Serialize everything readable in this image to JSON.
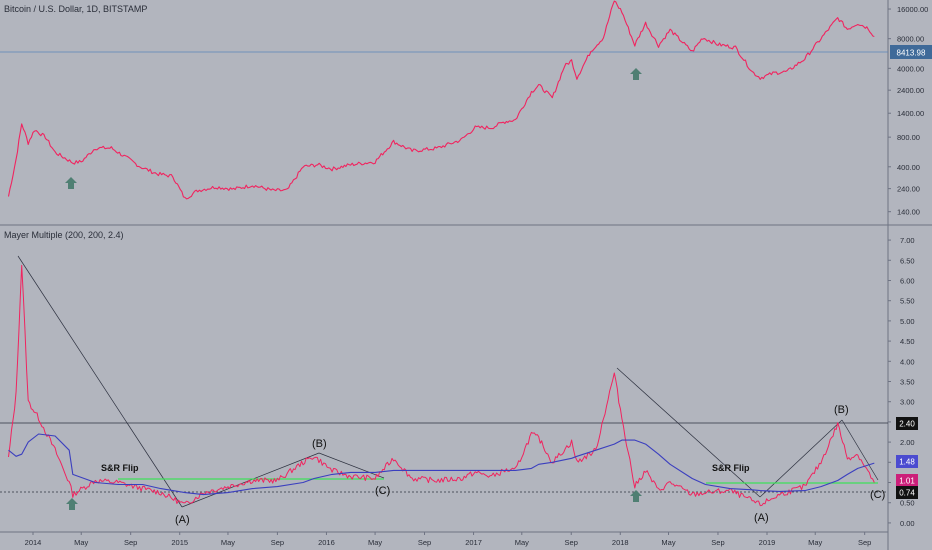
{
  "header": {
    "title": "Bitcoin / U.S. Dollar, 1D, BITSTAMP",
    "indicator": "Mayer Multiple (200, 200, 2.4)"
  },
  "colors": {
    "background": "#b2b5be",
    "price_line": "#f0245f",
    "ma_line": "#3b3fbf",
    "flip_line": "#3ee05a",
    "price_tag_bg": "#3f6a99",
    "mm_tag_bg": "#cc1f7a",
    "ma_tag_bg": "#4b4bd0",
    "arrow": "#4f7f73",
    "panel_border": "#6e7383"
  },
  "price_tag": "8413.98",
  "mm_tags": [
    "2.40",
    "1.48",
    "1.01",
    "0.74"
  ],
  "annotations": {
    "s_r_flip_label": "S&R Flip",
    "wave_a": "(A)",
    "wave_b": "(B)",
    "wave_c": "(C)"
  },
  "chart_data": [
    {
      "type": "line",
      "name": "price",
      "y_scale": "log",
      "ylim": [
        110,
        18000
      ],
      "y_ticks": [
        "16000.00",
        "8000.00",
        "4000.00",
        "2400.00",
        "1400.00",
        "800.00",
        "400.00",
        "240.00",
        "140.00"
      ],
      "x": [
        "2013-11-01",
        "2013-11-20",
        "2013-12-04",
        "2013-12-20",
        "2014-01-05",
        "2014-02-01",
        "2014-02-25",
        "2014-04-10",
        "2014-05-01",
        "2014-06-05",
        "2014-07-15",
        "2014-08-20",
        "2014-09-25",
        "2014-11-05",
        "2014-12-15",
        "2015-01-14",
        "2015-02-15",
        "2015-04-01",
        "2015-05-15",
        "2015-07-01",
        "2015-08-20",
        "2015-09-25",
        "2015-11-04",
        "2015-12-10",
        "2016-01-15",
        "2016-03-01",
        "2016-05-01",
        "2016-06-16",
        "2016-08-01",
        "2016-10-01",
        "2016-12-01",
        "2017-01-05",
        "2017-02-15",
        "2017-03-20",
        "2017-04-15",
        "2017-05-25",
        "2017-06-12",
        "2017-07-16",
        "2017-08-15",
        "2017-09-02",
        "2017-09-15",
        "2017-10-20",
        "2017-11-20",
        "2017-12-17",
        "2018-01-05",
        "2018-02-06",
        "2018-03-05",
        "2018-04-06",
        "2018-05-05",
        "2018-06-29",
        "2018-07-25",
        "2018-09-01",
        "2018-10-15",
        "2018-11-25",
        "2018-12-15",
        "2019-01-20",
        "2019-02-20",
        "2019-04-05",
        "2019-05-15",
        "2019-06-26",
        "2019-07-20",
        "2019-08-15",
        "2019-09-10",
        "2019-09-25"
      ],
      "y": [
        200,
        480,
        1100,
        700,
        950,
        800,
        560,
        440,
        450,
        620,
        620,
        500,
        400,
        340,
        320,
        190,
        230,
        250,
        237,
        260,
        230,
        230,
        400,
        420,
        380,
        420,
        450,
        720,
        580,
        615,
        750,
        1000,
        1000,
        1150,
        1200,
        2300,
        2700,
        2000,
        4200,
        4800,
        3200,
        6000,
        8200,
        19500,
        15000,
        6900,
        11500,
        6800,
        9800,
        5900,
        8200,
        7000,
        6500,
        3700,
        3200,
        3600,
        3700,
        5000,
        8000,
        13000,
        10000,
        11500,
        10200,
        8413.98
      ]
    },
    {
      "type": "line",
      "title": "Mayer Multiple (200, 200, 2.4)",
      "ylim": [
        -0.2,
        7.2
      ],
      "y_ticks": [
        "7.00",
        "6.50",
        "6.00",
        "5.50",
        "5.00",
        "4.50",
        "4.00",
        "3.50",
        "3.00",
        "2.50",
        "2.00",
        "1.50",
        "1.00",
        "0.50",
        "0.00"
      ],
      "x_ticks": [
        "2014",
        "May",
        "Sep",
        "2015",
        "May",
        "Sep",
        "2016",
        "May",
        "Sep",
        "2017",
        "May",
        "Sep",
        "2018",
        "May",
        "Sep",
        "2019",
        "May",
        "Sep"
      ],
      "x": [
        "2013-11-01",
        "2013-11-20",
        "2013-12-04",
        "2013-12-20",
        "2014-01-15",
        "2014-02-25",
        "2014-04-01",
        "2014-04-10",
        "2014-06-05",
        "2014-08-01",
        "2014-10-01",
        "2014-11-15",
        "2015-01-14",
        "2015-03-01",
        "2015-05-01",
        "2015-07-01",
        "2015-09-01",
        "2015-11-04",
        "2015-12-01",
        "2016-01-15",
        "2016-03-01",
        "2016-05-01",
        "2016-06-16",
        "2016-08-01",
        "2016-10-01",
        "2016-12-01",
        "2017-01-05",
        "2017-02-15",
        "2017-03-20",
        "2017-04-15",
        "2017-05-25",
        "2017-06-12",
        "2017-07-16",
        "2017-09-02",
        "2017-09-15",
        "2017-11-01",
        "2017-12-17",
        "2018-01-05",
        "2018-02-06",
        "2018-03-05",
        "2018-04-06",
        "2018-05-05",
        "2018-06-29",
        "2018-08-01",
        "2018-10-01",
        "2018-11-25",
        "2018-12-15",
        "2019-02-01",
        "2019-04-05",
        "2019-05-15",
        "2019-06-26",
        "2019-07-20",
        "2019-08-15",
        "2019-09-25"
      ],
      "series": [
        {
          "y": [
            1.6,
            3.2,
            6.4,
            3.0,
            2.6,
            1.8,
            1.0,
            0.7,
            1.05,
            1.0,
            0.85,
            0.75,
            0.45,
            0.75,
            0.9,
            1.05,
            1.05,
            1.5,
            1.65,
            1.3,
            1.15,
            1.1,
            1.6,
            1.1,
            1.05,
            1.1,
            1.25,
            1.15,
            1.3,
            1.3,
            2.2,
            2.1,
            1.5,
            2.0,
            1.5,
            1.8,
            3.7,
            2.6,
            0.9,
            1.3,
            0.8,
            1.0,
            0.7,
            0.75,
            0.8,
            0.55,
            0.45,
            0.7,
            0.9,
            1.5,
            2.45,
            1.6,
            1.7,
            1.0
          ]
        },
        {
          "y": [
            1.8,
            1.65,
            1.7,
            2.0,
            2.2,
            2.15,
            1.8,
            1.2,
            1.0,
            0.95,
            0.95,
            0.85,
            0.75,
            0.7,
            0.75,
            0.85,
            0.9,
            1.0,
            1.1,
            1.2,
            1.25,
            1.25,
            1.3,
            1.3,
            1.3,
            1.3,
            1.3,
            1.3,
            1.3,
            1.3,
            1.35,
            1.45,
            1.5,
            1.6,
            1.65,
            1.8,
            1.95,
            2.05,
            2.05,
            1.95,
            1.7,
            1.45,
            1.1,
            0.95,
            0.85,
            0.82,
            0.8,
            0.78,
            0.8,
            0.9,
            1.05,
            1.2,
            1.35,
            1.48
          ]
        }
      ],
      "levels": [
        2.4,
        0.74
      ],
      "annotations": [
        "S&R Flip",
        "(A)",
        "(B)",
        "(C)"
      ]
    }
  ]
}
